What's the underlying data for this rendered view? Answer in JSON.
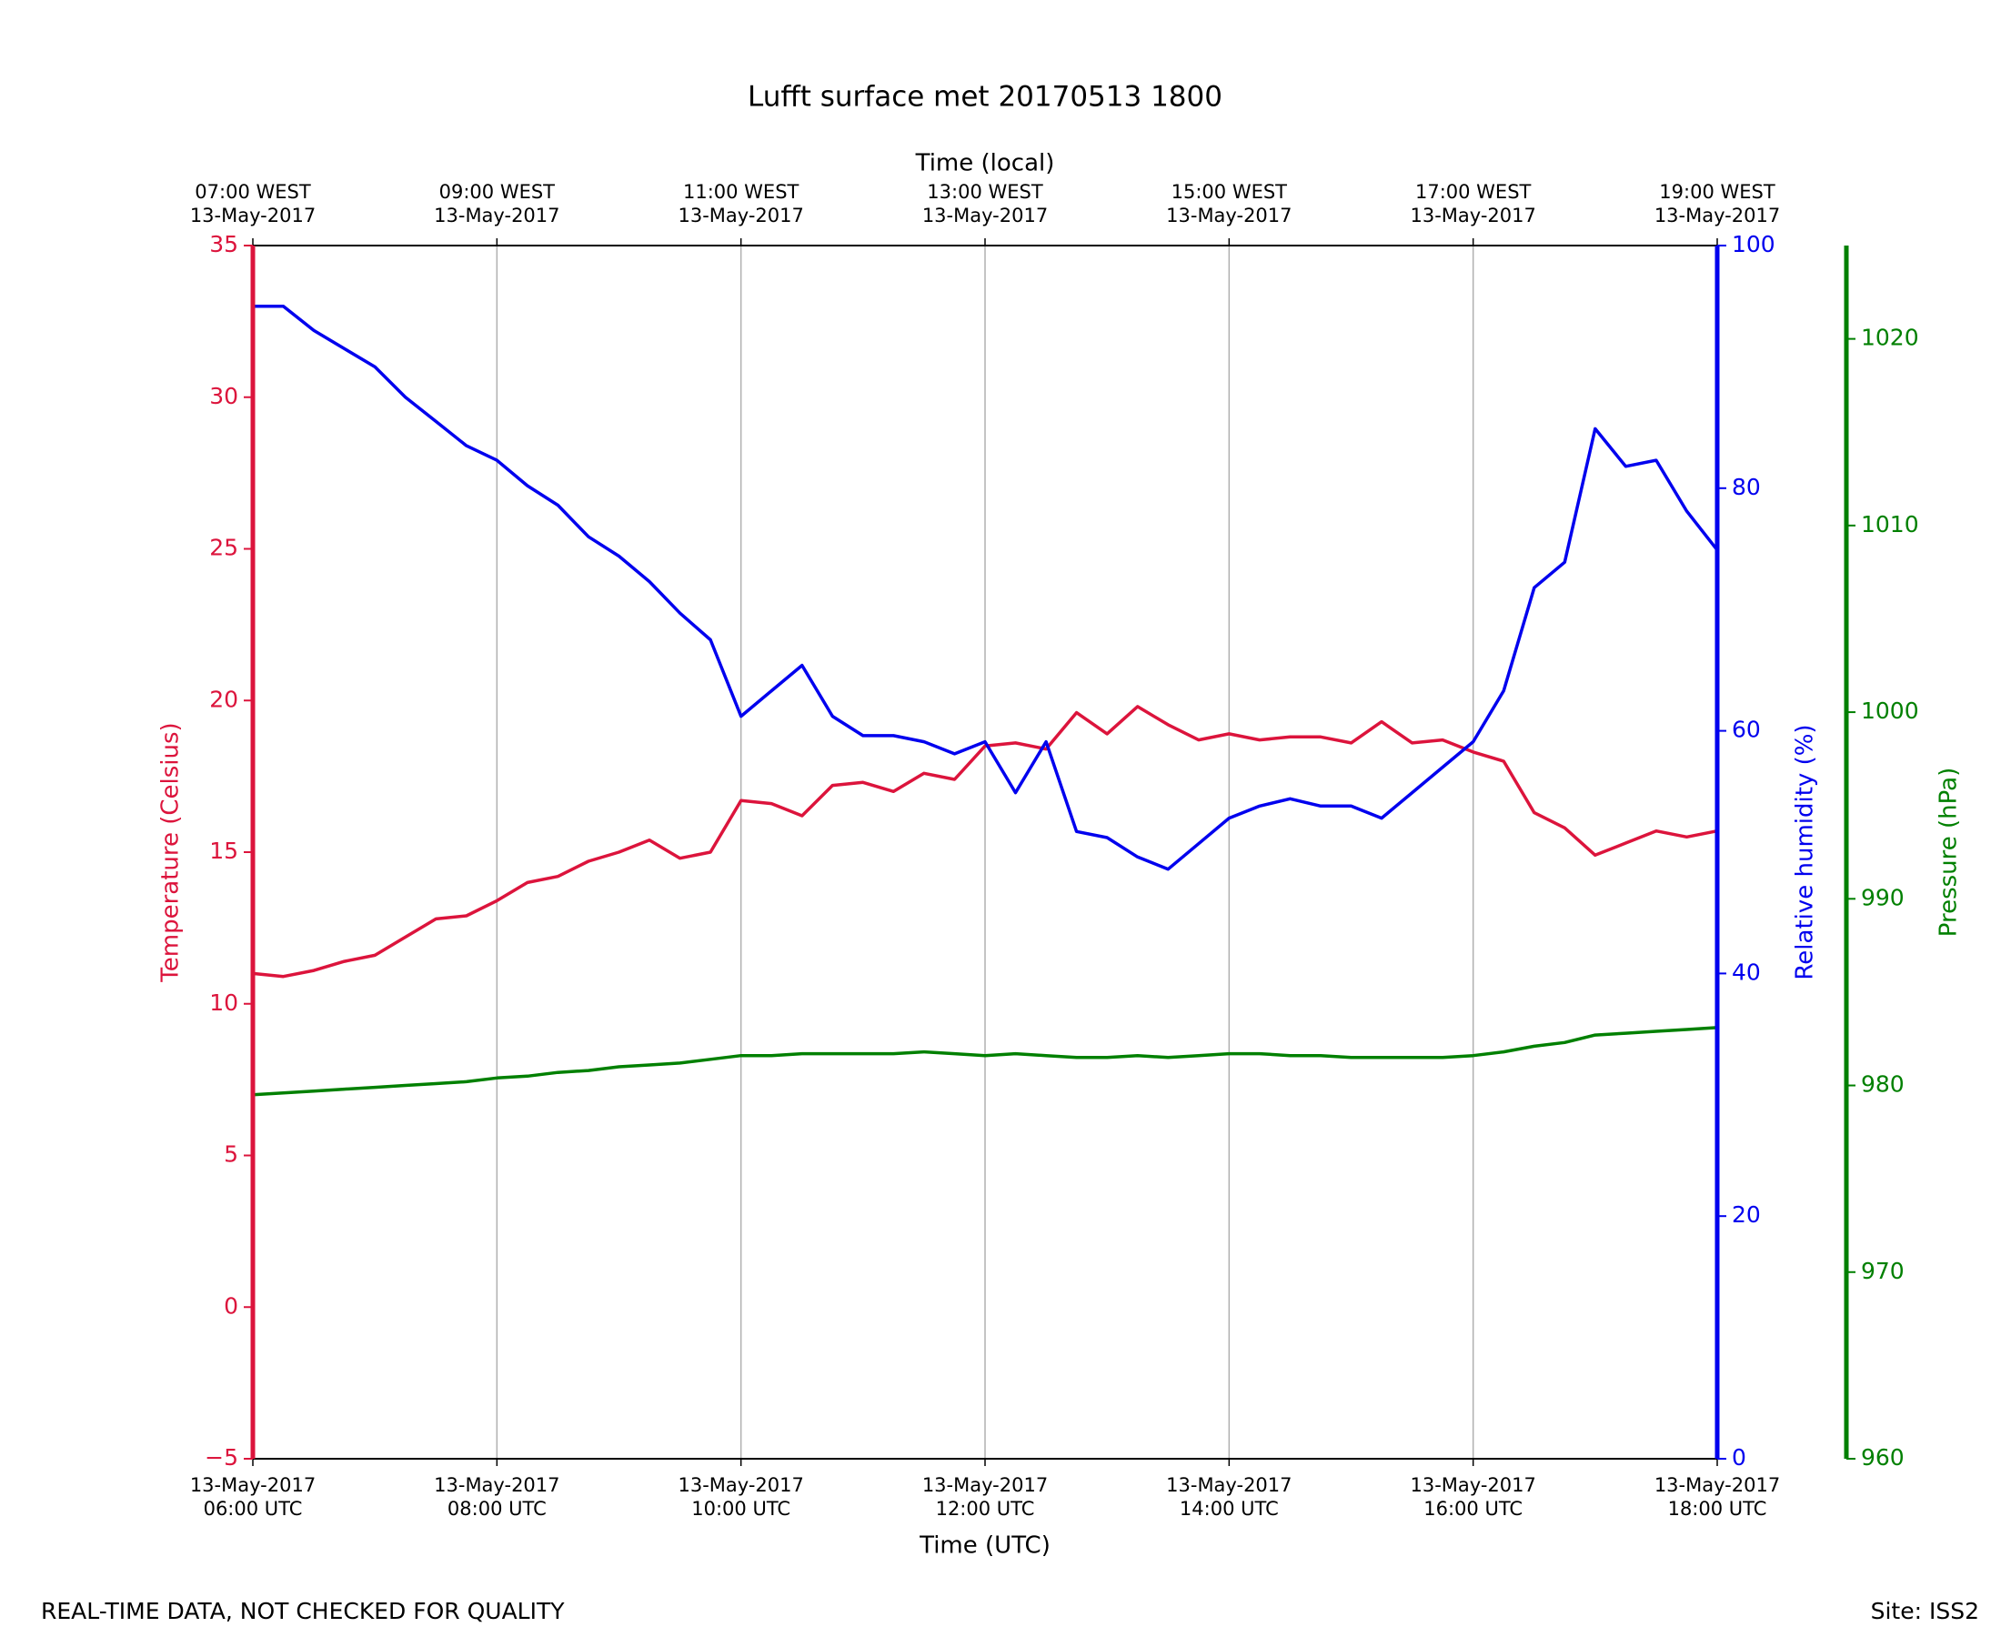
{
  "chart_data": {
    "type": "line",
    "title": "Lufft surface met 20170513 1800",
    "xlabel": "Time (UTC)",
    "x2label": "Time (local)",
    "footer_left": "REAL-TIME DATA, NOT CHECKED FOR QUALITY",
    "footer_right": "Site: ISS2",
    "x": [
      "2017-05-13 06:00",
      "2017-05-13 06:15",
      "2017-05-13 06:30",
      "2017-05-13 06:45",
      "2017-05-13 07:00",
      "2017-05-13 07:15",
      "2017-05-13 07:30",
      "2017-05-13 07:45",
      "2017-05-13 08:00",
      "2017-05-13 08:15",
      "2017-05-13 08:30",
      "2017-05-13 08:45",
      "2017-05-13 09:00",
      "2017-05-13 09:15",
      "2017-05-13 09:30",
      "2017-05-13 09:45",
      "2017-05-13 10:00",
      "2017-05-13 10:15",
      "2017-05-13 10:30",
      "2017-05-13 10:45",
      "2017-05-13 11:00",
      "2017-05-13 11:15",
      "2017-05-13 11:30",
      "2017-05-13 11:45",
      "2017-05-13 12:00",
      "2017-05-13 12:15",
      "2017-05-13 12:30",
      "2017-05-13 12:45",
      "2017-05-13 13:00",
      "2017-05-13 13:15",
      "2017-05-13 13:30",
      "2017-05-13 13:45",
      "2017-05-13 14:00",
      "2017-05-13 14:15",
      "2017-05-13 14:30",
      "2017-05-13 14:45",
      "2017-05-13 15:00",
      "2017-05-13 15:15",
      "2017-05-13 15:30",
      "2017-05-13 15:45",
      "2017-05-13 16:00",
      "2017-05-13 16:15",
      "2017-05-13 16:30",
      "2017-05-13 16:45",
      "2017-05-13 17:00",
      "2017-05-13 17:15",
      "2017-05-13 17:30",
      "2017-05-13 17:45",
      "2017-05-13 18:00"
    ],
    "xlim": [
      "2017-05-13 06:00",
      "2017-05-13 18:00"
    ],
    "xticks": [
      {
        "value": "2017-05-13 06:00",
        "label": [
          "13-May-2017",
          "06:00 UTC"
        ]
      },
      {
        "value": "2017-05-13 08:00",
        "label": [
          "13-May-2017",
          "08:00 UTC"
        ]
      },
      {
        "value": "2017-05-13 10:00",
        "label": [
          "13-May-2017",
          "10:00 UTC"
        ]
      },
      {
        "value": "2017-05-13 12:00",
        "label": [
          "13-May-2017",
          "12:00 UTC"
        ]
      },
      {
        "value": "2017-05-13 14:00",
        "label": [
          "13-May-2017",
          "14:00 UTC"
        ]
      },
      {
        "value": "2017-05-13 16:00",
        "label": [
          "13-May-2017",
          "16:00 UTC"
        ]
      },
      {
        "value": "2017-05-13 18:00",
        "label": [
          "13-May-2017",
          "18:00 UTC"
        ]
      }
    ],
    "x2ticks": [
      {
        "value": "2017-05-13 06:00",
        "label": [
          "07:00 WEST",
          "13-May-2017"
        ]
      },
      {
        "value": "2017-05-13 08:00",
        "label": [
          "09:00 WEST",
          "13-May-2017"
        ]
      },
      {
        "value": "2017-05-13 10:00",
        "label": [
          "11:00 WEST",
          "13-May-2017"
        ]
      },
      {
        "value": "2017-05-13 12:00",
        "label": [
          "13:00 WEST",
          "13-May-2017"
        ]
      },
      {
        "value": "2017-05-13 14:00",
        "label": [
          "15:00 WEST",
          "13-May-2017"
        ]
      },
      {
        "value": "2017-05-13 16:00",
        "label": [
          "17:00 WEST",
          "13-May-2017"
        ]
      },
      {
        "value": "2017-05-13 18:00",
        "label": [
          "19:00 WEST",
          "13-May-2017"
        ]
      }
    ],
    "ylim": [
      -5,
      35
    ],
    "yticks": [
      {
        "value": -5,
        "label": "−5"
      },
      0,
      5,
      10,
      15,
      20,
      25,
      30,
      35
    ],
    "y2lim": [
      0,
      100
    ],
    "y2ticks": [
      0,
      20,
      40,
      60,
      80,
      100
    ],
    "y3lim": [
      960,
      1025
    ],
    "y3ticks": [
      960,
      970,
      980,
      990,
      1000,
      1010,
      1020
    ],
    "grid": "x",
    "series": [
      {
        "name": "Temperature (Celsius)",
        "color": "#dc143c",
        "axis": "y",
        "values": [
          11.0,
          10.9,
          11.1,
          11.4,
          11.6,
          12.2,
          12.8,
          12.9,
          13.4,
          14.0,
          14.2,
          14.7,
          15.0,
          15.4,
          14.8,
          15.0,
          16.7,
          16.6,
          16.2,
          17.2,
          17.3,
          17.0,
          17.6,
          17.4,
          18.5,
          18.6,
          18.4,
          19.6,
          18.9,
          19.8,
          19.2,
          18.7,
          18.9,
          18.7,
          18.8,
          18.8,
          18.6,
          19.3,
          18.6,
          18.7,
          18.3,
          18.0,
          16.3,
          15.8,
          14.9,
          15.3,
          15.7,
          15.5,
          15.7
        ]
      },
      {
        "name": "Relative humidity (%)",
        "color": "#0000ee",
        "axis": "y2",
        "values": [
          95,
          95,
          93,
          91.5,
          90,
          87.5,
          85.5,
          83.5,
          82.3,
          80.2,
          78.6,
          76,
          74.4,
          72.3,
          69.7,
          67.5,
          61.2,
          63.3,
          65.4,
          61.2,
          59.6,
          59.6,
          59.1,
          58.1,
          59.1,
          54.9,
          59.1,
          51.7,
          51.2,
          49.6,
          48.6,
          50.7,
          52.8,
          53.8,
          54.4,
          53.8,
          53.8,
          52.8,
          54.9,
          57,
          59.1,
          63.3,
          71.8,
          73.9,
          84.9,
          81.8,
          82.3,
          78.1,
          74.9
        ]
      },
      {
        "name": "Pressure (hPa)",
        "color": "#008000",
        "axis": "y3",
        "values": [
          979.5,
          979.6,
          979.7,
          979.8,
          979.9,
          980.0,
          980.1,
          980.2,
          980.4,
          980.5,
          980.7,
          980.8,
          981.0,
          981.1,
          981.2,
          981.4,
          981.6,
          981.6,
          981.7,
          981.7,
          981.7,
          981.7,
          981.8,
          981.7,
          981.6,
          981.7,
          981.6,
          981.5,
          981.5,
          981.6,
          981.5,
          981.6,
          981.7,
          981.7,
          981.6,
          981.6,
          981.5,
          981.5,
          981.5,
          981.5,
          981.6,
          981.8,
          982.1,
          982.3,
          982.7,
          982.8,
          982.9,
          983.0,
          983.1
        ]
      }
    ]
  }
}
